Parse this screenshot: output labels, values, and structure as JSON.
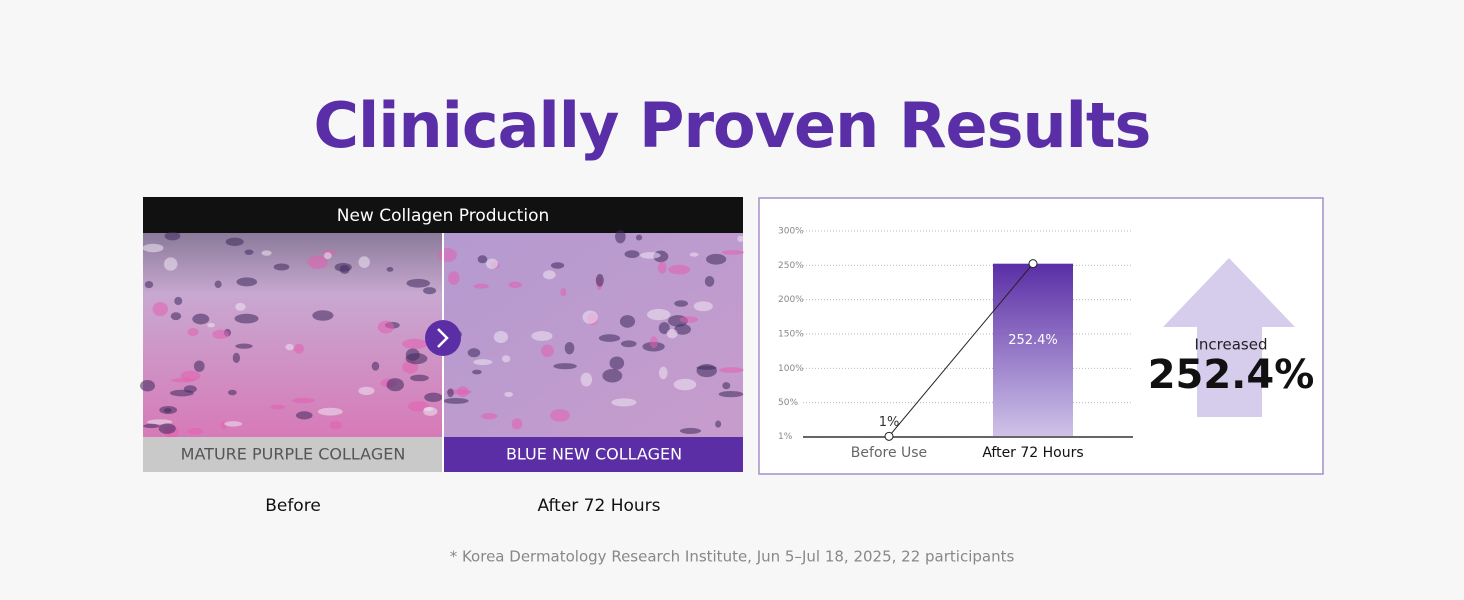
{
  "header": {
    "title": "Clinically Proven Results"
  },
  "comparison": {
    "title": "New Collagen Production",
    "before_label": "MATURE PURPLE COLLAGEN",
    "after_label": "BLUE NEW COLLAGEN",
    "before_caption": "Before",
    "after_caption": "After 72 Hours"
  },
  "chart_data": {
    "type": "bar",
    "categories": [
      "Before Use",
      "After 72 Hours"
    ],
    "values": [
      1,
      252.4
    ],
    "value_labels": [
      "1%",
      "252.4%"
    ],
    "colors": [
      "#d3d3d3",
      "#5b2ea6"
    ],
    "ylim": [
      0,
      300
    ],
    "yticks": [
      {
        "value": 1,
        "label": "1%"
      },
      {
        "value": 50,
        "label": "50%"
      },
      {
        "value": 100,
        "label": "100%"
      },
      {
        "value": 150,
        "label": "150%"
      },
      {
        "value": 200,
        "label": "200%"
      },
      {
        "value": 250,
        "label": "250%"
      },
      {
        "value": 300,
        "label": "300%"
      }
    ],
    "grid": true,
    "trend_line": true
  },
  "callout": {
    "label": "Increased",
    "value": "252.4%"
  },
  "footnote": "* Korea Dermatology Research Institute, Jun 5–Jul 18, 2025, 22 participants"
}
